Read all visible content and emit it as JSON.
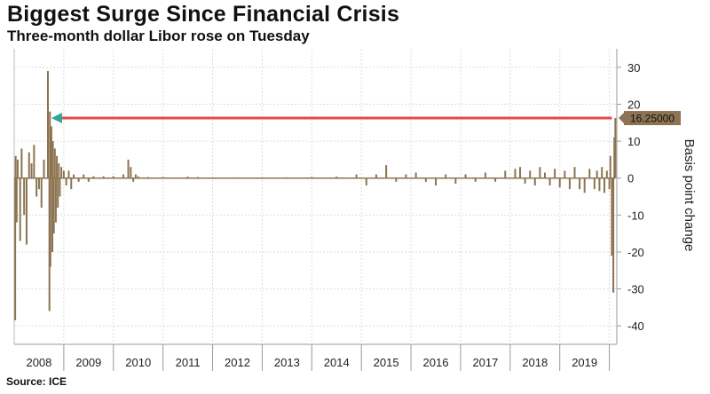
{
  "title": "Biggest Surge Since Financial Crisis",
  "subtitle": "Three-month dollar Libor rose on Tuesday",
  "source": "Source: ICE",
  "colors": {
    "series": "#8c7352",
    "arrow": "#e8474a",
    "arrowhead": "#2fa59a",
    "grid": "#dddddd"
  },
  "chart_data": {
    "type": "bar",
    "title": "Biggest Surge Since Financial Crisis",
    "subtitle": "Three-month dollar Libor rose on Tuesday",
    "xlabel": "",
    "ylabel": "Basis point change",
    "ylim": [
      -45,
      35
    ],
    "yticks": [
      30,
      20,
      10,
      0,
      -10,
      -20,
      -30,
      -40
    ],
    "xlim": [
      2008.0,
      2020.15
    ],
    "xticks": [
      "2008",
      "2009",
      "2010",
      "2011",
      "2012",
      "2013",
      "2014",
      "2015",
      "2016",
      "2017",
      "2018",
      "2019"
    ],
    "last_value_label": "16.25000",
    "annotation": "arrow from latest value (16.25) back to 2008 level of similar size",
    "grid": true,
    "y_axis_position": "right",
    "series": [
      {
        "values_x": [
          2008.02,
          2008.03,
          2008.05,
          2008.07,
          2008.12,
          2008.15,
          2008.2,
          2008.25,
          2008.3,
          2008.35,
          2008.4,
          2008.45,
          2008.5,
          2008.55,
          2008.6,
          2008.68,
          2008.71,
          2008.72,
          2008.73,
          2008.75,
          2008.77,
          2008.78,
          2008.8,
          2008.82,
          2008.84,
          2008.86,
          2008.88,
          2008.9,
          2008.92,
          2008.95,
          2009.0,
          2009.05,
          2009.1,
          2009.15,
          2009.2,
          2009.3,
          2009.4,
          2009.5,
          2009.6,
          2009.8,
          2010.0,
          2010.2,
          2010.3,
          2010.35,
          2010.4,
          2010.45,
          2010.5,
          2010.7,
          2011.0,
          2011.5,
          2011.7,
          2012.0,
          2012.5,
          2013.0,
          2013.5,
          2014.0,
          2014.5,
          2014.9,
          2015.1,
          2015.3,
          2015.5,
          2015.7,
          2015.9,
          2016.1,
          2016.3,
          2016.5,
          2016.7,
          2016.9,
          2017.1,
          2017.3,
          2017.5,
          2017.7,
          2017.9,
          2018.1,
          2018.2,
          2018.3,
          2018.4,
          2018.5,
          2018.6,
          2018.7,
          2018.8,
          2018.9,
          2019.0,
          2019.1,
          2019.2,
          2019.3,
          2019.4,
          2019.5,
          2019.6,
          2019.7,
          2019.75,
          2019.8,
          2019.85,
          2019.9,
          2019.95,
          2020.0,
          2020.02,
          2020.05,
          2020.08,
          2020.1,
          2020.12
        ],
        "values": [
          -38.5,
          6,
          -12,
          5,
          -17,
          8,
          -10,
          -18,
          7,
          4,
          9,
          -5,
          -3,
          -8,
          5,
          29,
          -36,
          18,
          -24,
          14,
          -20,
          10,
          -15,
          8,
          -12,
          6,
          -8,
          4,
          -5,
          3,
          2,
          -2,
          2,
          -3,
          1,
          -1,
          1,
          -1,
          0.5,
          0.5,
          0.5,
          1,
          5,
          3,
          -1,
          1,
          0.5,
          0.3,
          0.3,
          0.4,
          0.3,
          0.2,
          0.2,
          0.2,
          0.2,
          0.3,
          0.4,
          1,
          -2,
          1,
          3.5,
          -1,
          1,
          1.5,
          -1,
          -2,
          1,
          -1.5,
          1,
          -1,
          1.5,
          -1,
          2,
          2.5,
          3,
          -1.5,
          2,
          -2,
          3,
          1.5,
          -2,
          2.5,
          -2.5,
          2,
          -3,
          3,
          -3,
          -4,
          2.5,
          -3,
          2,
          -3.5,
          3,
          -4,
          2,
          -3,
          6,
          -21,
          -31,
          11,
          16.25
        ]
      }
    ]
  }
}
